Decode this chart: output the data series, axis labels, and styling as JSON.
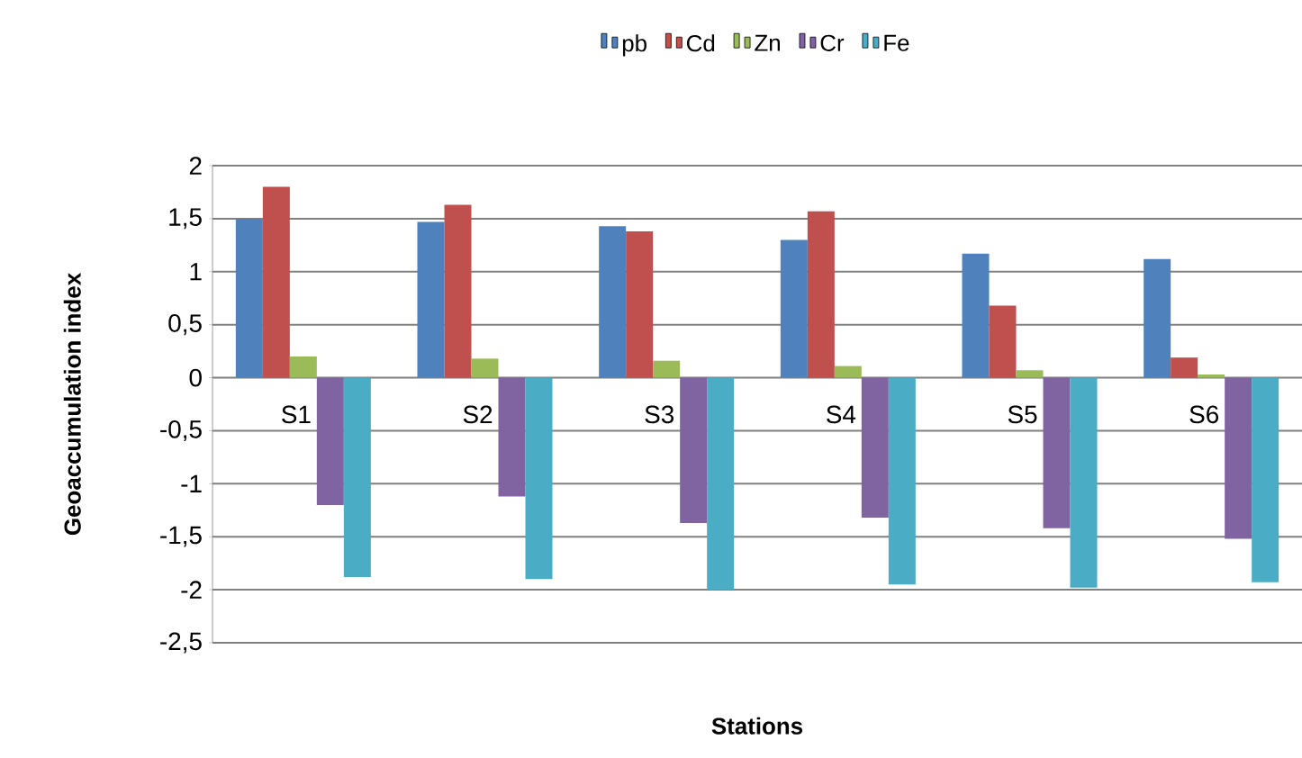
{
  "chart_data": {
    "type": "bar",
    "xlabel": "Stations",
    "ylabel": "Geoaccumulation index",
    "categories": [
      "S1",
      "S2",
      "S3",
      "S4",
      "S5",
      "S6"
    ],
    "series": [
      {
        "name": "pb",
        "color": "#4f81bd",
        "values": [
          1.5,
          1.47,
          1.43,
          1.3,
          1.17,
          1.12
        ]
      },
      {
        "name": "Cd",
        "color": "#c0504d",
        "values": [
          1.8,
          1.63,
          1.38,
          1.57,
          0.68,
          0.19
        ]
      },
      {
        "name": "Zn",
        "color": "#9bbb59",
        "values": [
          0.2,
          0.18,
          0.16,
          0.11,
          0.07,
          0.03
        ]
      },
      {
        "name": "Cr",
        "color": "#8064a2",
        "values": [
          -1.2,
          -1.12,
          -1.37,
          -1.32,
          -1.42,
          -1.52
        ]
      },
      {
        "name": "Fe",
        "color": "#4bacc6",
        "values": [
          -1.88,
          -1.9,
          -2.0,
          -1.95,
          -1.98,
          -1.93
        ]
      }
    ],
    "ylim": [
      -2.5,
      2
    ],
    "yticks": [
      {
        "value": -2.5,
        "label": "-2,5"
      },
      {
        "value": -2,
        "label": "-2"
      },
      {
        "value": -1.5,
        "label": "-1,5"
      },
      {
        "value": -1,
        "label": "-1"
      },
      {
        "value": -0.5,
        "label": "-0,5"
      },
      {
        "value": 0,
        "label": "0"
      },
      {
        "value": 0.5,
        "label": "0,5"
      },
      {
        "value": 1,
        "label": "1"
      },
      {
        "value": 1.5,
        "label": "1,5"
      },
      {
        "value": 2,
        "label": "2"
      }
    ],
    "grid": "y",
    "legend": "top"
  }
}
